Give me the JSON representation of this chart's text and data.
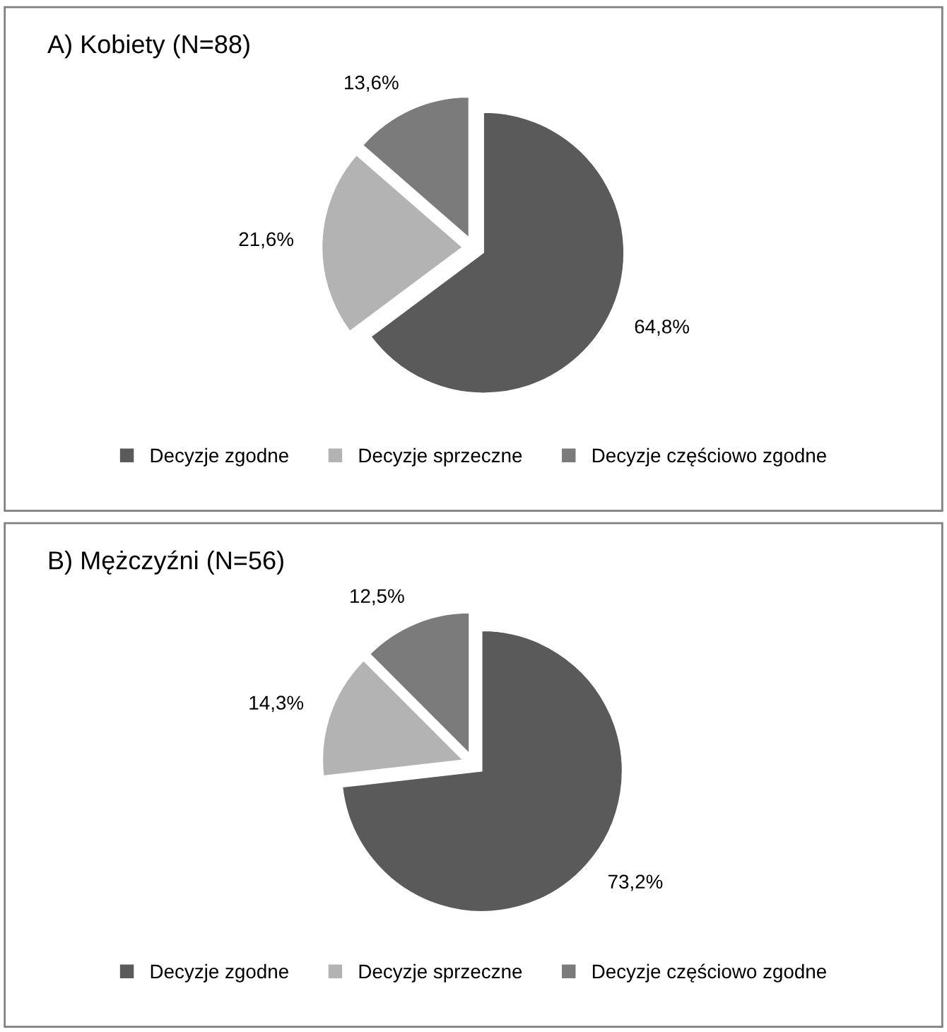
{
  "chart_data": [
    {
      "type": "pie",
      "title": "A) Kobiety (N=88)",
      "categories": [
        "Decyzje zgodne",
        "Decyzje sprzeczne",
        "Decyzje częściowo zgodne"
      ],
      "values": [
        64.8,
        21.6,
        13.6
      ],
      "colors": [
        "#5a5a5a",
        "#b3b3b3",
        "#7b7b7b"
      ],
      "value_labels": [
        "64,8%",
        "21,6%",
        "13,6%"
      ],
      "legend": "bottom"
    },
    {
      "type": "pie",
      "title": "B) Mężczyźni (N=56)",
      "categories": [
        "Decyzje zgodne",
        "Decyzje sprzeczne",
        "Decyzje częściowo zgodne"
      ],
      "values": [
        73.2,
        14.3,
        12.5
      ],
      "colors": [
        "#5a5a5a",
        "#b3b3b3",
        "#7b7b7b"
      ],
      "value_labels": [
        "73,2%",
        "14,3%",
        "12,5%"
      ],
      "legend": "bottom"
    }
  ]
}
